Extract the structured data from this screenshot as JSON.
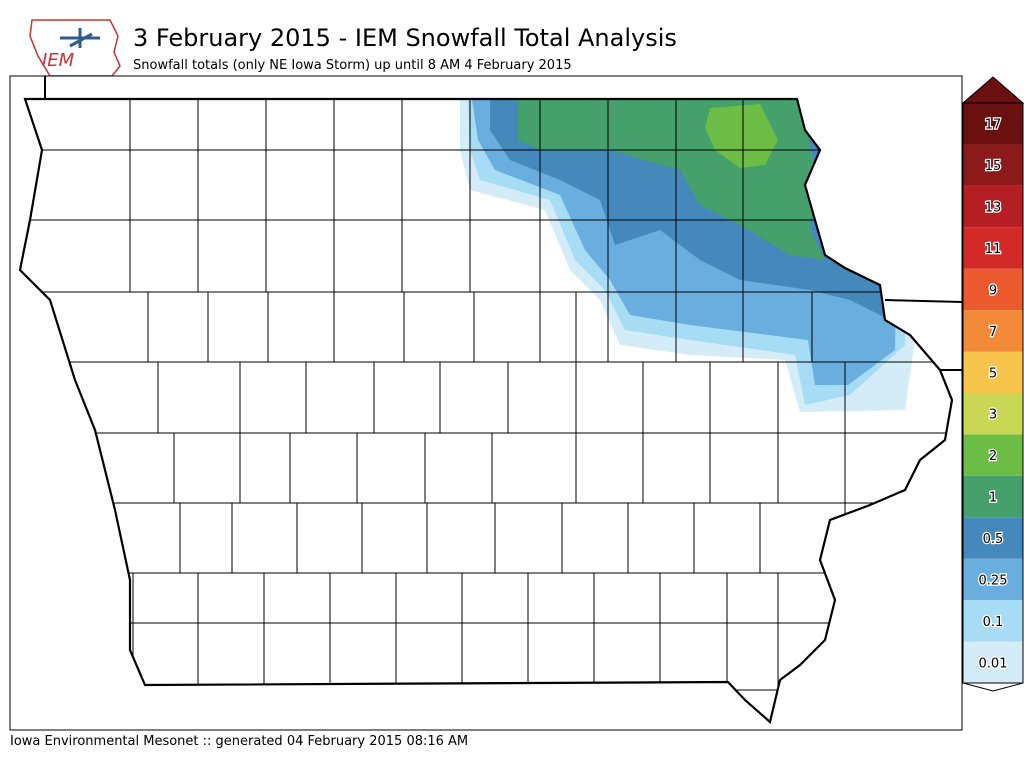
{
  "header": {
    "logo": "IEM",
    "title": "3 February 2015 - IEM Snowfall Total Analysis",
    "subtitle": "Snowfall totals (only NE Iowa Storm) up until 8 AM 4 February 2015"
  },
  "colorbar": {
    "levels": [
      0.01,
      0.1,
      0.25,
      0.5,
      1,
      2,
      3,
      5,
      7,
      9,
      11,
      13,
      15,
      17
    ],
    "colors": [
      "#d4ecf8",
      "#a6dcf4",
      "#6aaddf",
      "#4588bb",
      "#45a06c",
      "#6bbd45",
      "#c8d854",
      "#f8c54c",
      "#f38a38",
      "#ea5a2c",
      "#d32a28",
      "#b51f24",
      "#8d1a1a",
      "#6a1010"
    ]
  },
  "footer": "Iowa Environmental Mesonet :: generated 04 February 2015 08:16 AM"
}
